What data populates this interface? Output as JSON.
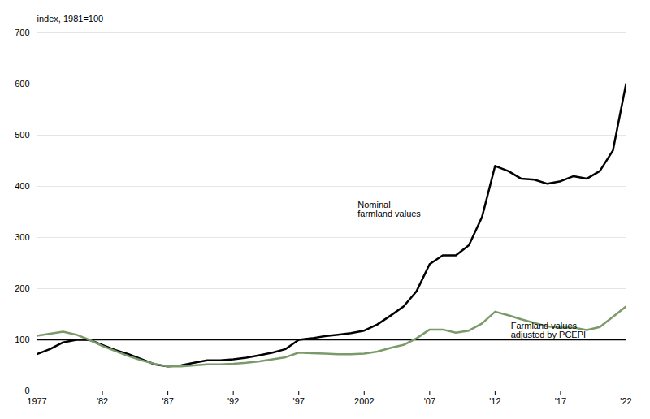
{
  "chart_data": {
    "type": "line",
    "ylabel": "index, 1981=100",
    "x": [
      1977,
      1978,
      1979,
      1980,
      1981,
      1982,
      1983,
      1984,
      1985,
      1986,
      1987,
      1988,
      1989,
      1990,
      1991,
      1992,
      1993,
      1994,
      1995,
      1996,
      1997,
      1998,
      1999,
      2000,
      2001,
      2002,
      2003,
      2004,
      2005,
      2006,
      2007,
      2008,
      2009,
      2010,
      2011,
      2012,
      2013,
      2014,
      2015,
      2016,
      2017,
      2018,
      2019,
      2020,
      2021,
      2022
    ],
    "series": [
      {
        "color": "#000000",
        "values": [
          72,
          82,
          95,
          100,
          100,
          90,
          80,
          72,
          62,
          52,
          48,
          50,
          55,
          60,
          60,
          62,
          65,
          70,
          75,
          82,
          100,
          103,
          107,
          110,
          113,
          118,
          130,
          147,
          165,
          195,
          248,
          265,
          265,
          285,
          340,
          440,
          430,
          415,
          413,
          405,
          410,
          420,
          415,
          430,
          470,
          600
        ]
      },
      {
        "color": "#7a9a6a",
        "values": [
          108,
          112,
          116,
          110,
          100,
          88,
          78,
          68,
          60,
          53,
          48,
          48,
          50,
          52,
          52,
          53,
          55,
          58,
          62,
          66,
          75,
          74,
          73,
          72,
          72,
          73,
          77,
          84,
          90,
          103,
          120,
          120,
          114,
          118,
          132,
          155,
          148,
          140,
          133,
          126,
          124,
          124,
          119,
          125,
          145,
          165
        ]
      }
    ],
    "annotations": [
      {
        "text": "Nominal\nfarmland values",
        "x": 2001.5,
        "y": 355
      },
      {
        "text": "Farmland values\nadjusted by PCEPI",
        "x": 2013.2,
        "y": 118
      }
    ],
    "reference_lines": [
      100
    ],
    "xlim": [
      1977,
      2022
    ],
    "xticks": [
      1977,
      {
        "value": 1982,
        "label": "'82"
      },
      {
        "value": 1987,
        "label": "'87"
      },
      {
        "value": 1992,
        "label": "'92"
      },
      {
        "value": 1997,
        "label": "'97"
      },
      2002,
      {
        "value": 2007,
        "label": "'07"
      },
      {
        "value": 2012,
        "label": "'12"
      },
      {
        "value": 2017,
        "label": "'17"
      },
      {
        "value": 2022,
        "label": "'22"
      }
    ],
    "ylim": [
      0,
      700
    ],
    "yticks": [
      0,
      100,
      200,
      300,
      400,
      500,
      600,
      700
    ],
    "grid": true
  }
}
